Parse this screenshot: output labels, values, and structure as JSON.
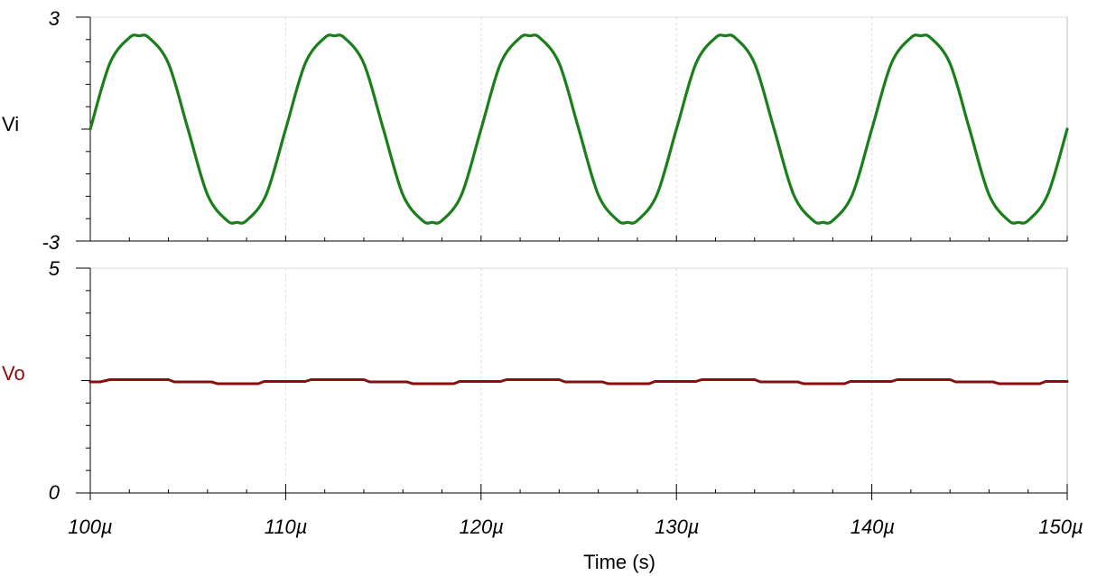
{
  "chart_data": [
    {
      "type": "line",
      "ylabel": "Vi",
      "ylim": [
        -3,
        3
      ],
      "y_tick_labels": [
        "3",
        "-3"
      ],
      "color": "#1a7f1a",
      "label_color": "#000000",
      "grid": true,
      "series": [
        {
          "x": [
            100,
            101,
            102,
            102.5,
            103,
            104,
            105,
            106,
            107,
            107.5,
            108,
            109,
            110,
            111,
            112,
            112.5,
            113,
            114,
            115,
            116,
            117,
            117.5,
            118,
            119,
            120,
            121,
            122,
            122.5,
            123,
            124,
            125,
            126,
            127,
            127.5,
            128,
            129,
            130,
            131,
            132,
            132.5,
            133,
            134,
            135,
            136,
            137,
            137.5,
            138,
            139,
            140,
            141,
            142,
            142.5,
            143,
            144,
            145,
            146,
            147,
            147.5,
            148,
            149,
            150
          ],
          "y": [
            0,
            1.76,
            2.45,
            2.5,
            2.45,
            1.76,
            0,
            -1.76,
            -2.45,
            -2.5,
            -2.45,
            -1.76,
            0,
            1.76,
            2.45,
            2.5,
            2.45,
            1.76,
            0,
            -1.76,
            -2.45,
            -2.5,
            -2.45,
            -1.76,
            0,
            1.76,
            2.45,
            2.5,
            2.45,
            1.76,
            0,
            -1.76,
            -2.45,
            -2.5,
            -2.45,
            -1.76,
            0,
            1.76,
            2.45,
            2.5,
            2.45,
            1.76,
            0,
            -1.76,
            -2.45,
            -2.5,
            -2.45,
            -1.76,
            0,
            1.76,
            2.45,
            2.5,
            2.45,
            1.76,
            0,
            -1.76,
            -2.45,
            -2.5,
            -2.45,
            -1.76,
            0
          ]
        }
      ]
    },
    {
      "type": "line",
      "ylabel": "Vo",
      "ylim": [
        0,
        5
      ],
      "y_tick_labels": [
        "5",
        "0"
      ],
      "color": "#8b0d0d",
      "label_color": "#8b0d0d",
      "grid": true,
      "series": [
        {
          "x": [
            100,
            100.5,
            101,
            104,
            104.3,
            106.2,
            106.5,
            108.6,
            108.9,
            111,
            111.3,
            114,
            114.3,
            116.2,
            116.5,
            118.6,
            118.9,
            121,
            121.3,
            124,
            124.3,
            126.2,
            126.5,
            128.6,
            128.9,
            131,
            131.3,
            134,
            134.3,
            136.2,
            136.5,
            138.6,
            138.9,
            141,
            141.3,
            144,
            144.3,
            146.2,
            146.5,
            148.6,
            148.9,
            150
          ],
          "y": [
            2.47,
            2.47,
            2.52,
            2.52,
            2.47,
            2.47,
            2.43,
            2.43,
            2.48,
            2.48,
            2.52,
            2.52,
            2.47,
            2.47,
            2.43,
            2.43,
            2.48,
            2.48,
            2.52,
            2.52,
            2.47,
            2.47,
            2.43,
            2.43,
            2.48,
            2.48,
            2.52,
            2.52,
            2.47,
            2.47,
            2.43,
            2.43,
            2.48,
            2.48,
            2.52,
            2.52,
            2.47,
            2.47,
            2.43,
            2.43,
            2.48,
            2.48
          ]
        }
      ]
    }
  ],
  "x_axis": {
    "label": "Time (s)",
    "xlim": [
      100,
      150
    ],
    "ticks": [
      100,
      110,
      120,
      130,
      140,
      150
    ],
    "tick_labels": [
      "100µ",
      "110µ",
      "120µ",
      "130µ",
      "140µ",
      "150µ"
    ]
  }
}
